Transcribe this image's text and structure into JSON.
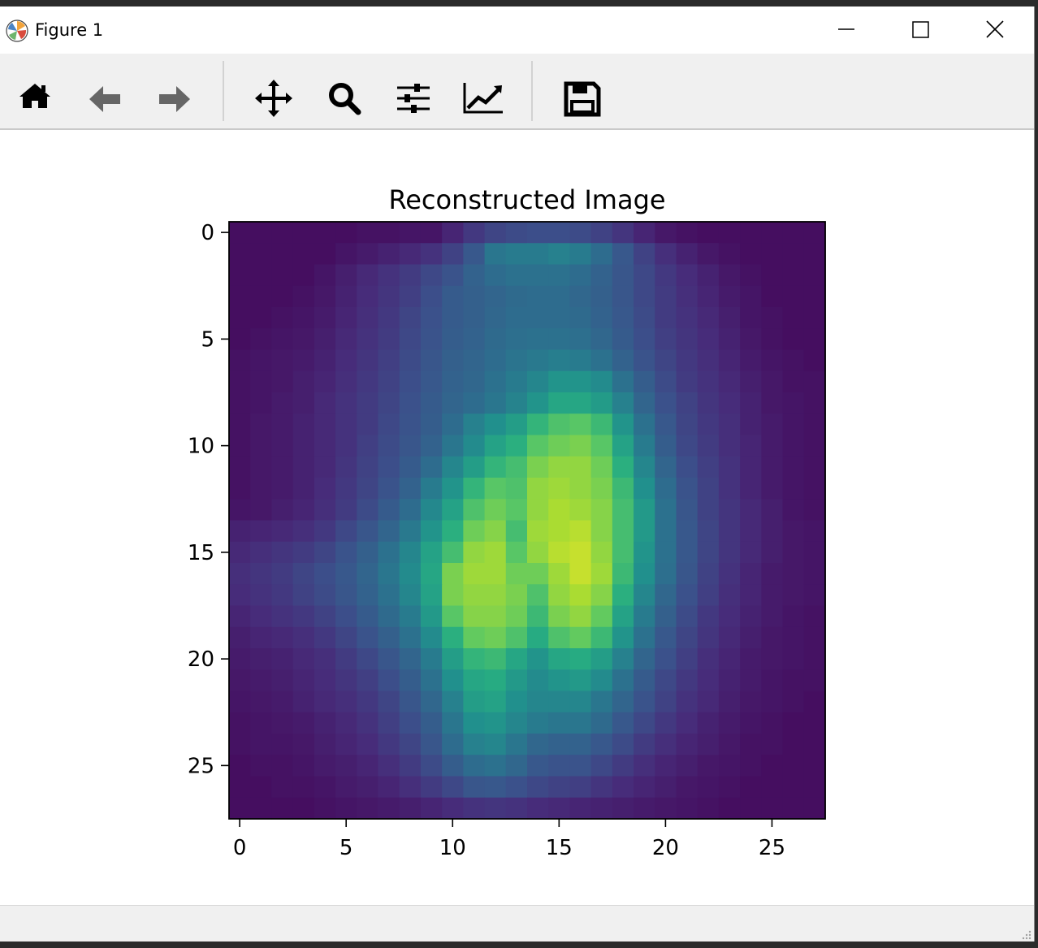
{
  "window": {
    "title": "Figure 1",
    "controls": [
      "minimize",
      "maximize",
      "close"
    ]
  },
  "toolbar": {
    "buttons": [
      {
        "name": "home",
        "icon": "home-icon"
      },
      {
        "name": "back",
        "icon": "arrow-left-icon"
      },
      {
        "name": "forward",
        "icon": "arrow-right-icon"
      },
      {
        "name": "pan",
        "icon": "move-icon"
      },
      {
        "name": "zoom",
        "icon": "magnifier-icon"
      },
      {
        "name": "subplots",
        "icon": "sliders-icon"
      },
      {
        "name": "axes",
        "icon": "line-chart-icon"
      },
      {
        "name": "save",
        "icon": "floppy-disk-icon"
      }
    ]
  },
  "statusbar": {
    "text": ""
  },
  "chart_data": {
    "type": "heatmap",
    "title": "Reconstructed Image",
    "xlabel": "",
    "ylabel": "",
    "colormap": "viridis",
    "rows": 28,
    "cols": 28,
    "xlim": [
      -0.5,
      27.5
    ],
    "ylim": [
      27.5,
      -0.5
    ],
    "xticks": [
      0,
      5,
      10,
      15,
      20,
      25
    ],
    "yticks": [
      0,
      5,
      10,
      15,
      20,
      25
    ],
    "values": [
      [
        0.04,
        0.04,
        0.04,
        0.04,
        0.04,
        0.04,
        0.05,
        0.05,
        0.06,
        0.06,
        0.11,
        0.17,
        0.21,
        0.23,
        0.24,
        0.24,
        0.23,
        0.2,
        0.16,
        0.11,
        0.07,
        0.05,
        0.04,
        0.04,
        0.04,
        0.04,
        0.04,
        0.04
      ],
      [
        0.04,
        0.04,
        0.04,
        0.04,
        0.04,
        0.06,
        0.08,
        0.1,
        0.12,
        0.15,
        0.2,
        0.28,
        0.4,
        0.42,
        0.42,
        0.44,
        0.42,
        0.36,
        0.28,
        0.2,
        0.14,
        0.1,
        0.07,
        0.05,
        0.04,
        0.04,
        0.04,
        0.04
      ],
      [
        0.04,
        0.04,
        0.04,
        0.04,
        0.06,
        0.09,
        0.12,
        0.15,
        0.18,
        0.22,
        0.26,
        0.32,
        0.36,
        0.38,
        0.38,
        0.38,
        0.36,
        0.32,
        0.27,
        0.22,
        0.17,
        0.13,
        0.1,
        0.07,
        0.05,
        0.04,
        0.04,
        0.04
      ],
      [
        0.04,
        0.04,
        0.04,
        0.05,
        0.07,
        0.1,
        0.13,
        0.16,
        0.19,
        0.24,
        0.29,
        0.31,
        0.33,
        0.35,
        0.36,
        0.36,
        0.34,
        0.31,
        0.27,
        0.22,
        0.18,
        0.14,
        0.11,
        0.08,
        0.06,
        0.04,
        0.04,
        0.04
      ],
      [
        0.04,
        0.04,
        0.05,
        0.06,
        0.08,
        0.11,
        0.14,
        0.17,
        0.21,
        0.25,
        0.29,
        0.31,
        0.34,
        0.36,
        0.36,
        0.36,
        0.35,
        0.32,
        0.28,
        0.23,
        0.18,
        0.15,
        0.12,
        0.09,
        0.06,
        0.05,
        0.04,
        0.04
      ],
      [
        0.04,
        0.05,
        0.06,
        0.07,
        0.09,
        0.12,
        0.15,
        0.18,
        0.22,
        0.26,
        0.3,
        0.32,
        0.35,
        0.37,
        0.38,
        0.38,
        0.37,
        0.34,
        0.29,
        0.24,
        0.19,
        0.16,
        0.13,
        0.1,
        0.07,
        0.05,
        0.04,
        0.04
      ],
      [
        0.05,
        0.06,
        0.07,
        0.08,
        0.1,
        0.13,
        0.16,
        0.19,
        0.23,
        0.27,
        0.31,
        0.33,
        0.36,
        0.39,
        0.41,
        0.43,
        0.42,
        0.38,
        0.32,
        0.26,
        0.21,
        0.17,
        0.14,
        0.11,
        0.08,
        0.06,
        0.05,
        0.04
      ],
      [
        0.05,
        0.06,
        0.07,
        0.09,
        0.11,
        0.14,
        0.17,
        0.2,
        0.24,
        0.28,
        0.32,
        0.34,
        0.38,
        0.42,
        0.46,
        0.52,
        0.52,
        0.48,
        0.38,
        0.3,
        0.23,
        0.18,
        0.15,
        0.12,
        0.09,
        0.07,
        0.05,
        0.05
      ],
      [
        0.05,
        0.06,
        0.08,
        0.09,
        0.12,
        0.15,
        0.18,
        0.21,
        0.25,
        0.29,
        0.33,
        0.36,
        0.4,
        0.45,
        0.52,
        0.6,
        0.6,
        0.55,
        0.44,
        0.33,
        0.25,
        0.2,
        0.16,
        0.13,
        0.1,
        0.07,
        0.06,
        0.05
      ],
      [
        0.05,
        0.07,
        0.08,
        0.1,
        0.12,
        0.15,
        0.18,
        0.22,
        0.26,
        0.3,
        0.36,
        0.44,
        0.5,
        0.56,
        0.66,
        0.72,
        0.74,
        0.68,
        0.52,
        0.38,
        0.28,
        0.21,
        0.17,
        0.14,
        0.1,
        0.08,
        0.06,
        0.05
      ],
      [
        0.05,
        0.07,
        0.08,
        0.1,
        0.12,
        0.15,
        0.19,
        0.23,
        0.27,
        0.32,
        0.4,
        0.48,
        0.58,
        0.64,
        0.74,
        0.78,
        0.8,
        0.74,
        0.58,
        0.42,
        0.3,
        0.22,
        0.18,
        0.14,
        0.11,
        0.08,
        0.06,
        0.05
      ],
      [
        0.05,
        0.07,
        0.08,
        0.1,
        0.12,
        0.16,
        0.2,
        0.24,
        0.29,
        0.36,
        0.46,
        0.56,
        0.66,
        0.7,
        0.8,
        0.84,
        0.84,
        0.78,
        0.64,
        0.46,
        0.33,
        0.24,
        0.19,
        0.15,
        0.11,
        0.08,
        0.06,
        0.05
      ],
      [
        0.05,
        0.07,
        0.08,
        0.1,
        0.13,
        0.17,
        0.21,
        0.26,
        0.32,
        0.42,
        0.52,
        0.66,
        0.74,
        0.72,
        0.84,
        0.86,
        0.84,
        0.8,
        0.68,
        0.5,
        0.36,
        0.26,
        0.2,
        0.15,
        0.11,
        0.08,
        0.06,
        0.05
      ],
      [
        0.06,
        0.07,
        0.09,
        0.11,
        0.14,
        0.18,
        0.23,
        0.29,
        0.36,
        0.47,
        0.58,
        0.72,
        0.78,
        0.74,
        0.84,
        0.88,
        0.86,
        0.82,
        0.7,
        0.54,
        0.38,
        0.27,
        0.2,
        0.16,
        0.12,
        0.09,
        0.06,
        0.05
      ],
      [
        0.1,
        0.11,
        0.12,
        0.14,
        0.17,
        0.22,
        0.27,
        0.33,
        0.41,
        0.52,
        0.64,
        0.78,
        0.82,
        0.7,
        0.86,
        0.88,
        0.9,
        0.82,
        0.7,
        0.54,
        0.38,
        0.28,
        0.21,
        0.16,
        0.12,
        0.09,
        0.07,
        0.06
      ],
      [
        0.12,
        0.14,
        0.16,
        0.18,
        0.21,
        0.26,
        0.31,
        0.38,
        0.46,
        0.58,
        0.7,
        0.84,
        0.86,
        0.74,
        0.84,
        0.9,
        0.92,
        0.84,
        0.7,
        0.52,
        0.38,
        0.28,
        0.21,
        0.16,
        0.12,
        0.09,
        0.07,
        0.06
      ],
      [
        0.14,
        0.16,
        0.18,
        0.21,
        0.24,
        0.28,
        0.33,
        0.4,
        0.48,
        0.6,
        0.8,
        0.86,
        0.86,
        0.78,
        0.78,
        0.86,
        0.92,
        0.86,
        0.68,
        0.5,
        0.37,
        0.27,
        0.2,
        0.15,
        0.11,
        0.08,
        0.07,
        0.06
      ],
      [
        0.13,
        0.15,
        0.17,
        0.2,
        0.23,
        0.27,
        0.32,
        0.38,
        0.46,
        0.58,
        0.8,
        0.84,
        0.84,
        0.8,
        0.72,
        0.84,
        0.88,
        0.82,
        0.64,
        0.46,
        0.34,
        0.25,
        0.19,
        0.14,
        0.11,
        0.08,
        0.07,
        0.06
      ],
      [
        0.11,
        0.13,
        0.15,
        0.17,
        0.2,
        0.24,
        0.29,
        0.35,
        0.42,
        0.54,
        0.74,
        0.82,
        0.82,
        0.78,
        0.68,
        0.8,
        0.84,
        0.76,
        0.58,
        0.42,
        0.31,
        0.23,
        0.17,
        0.13,
        0.1,
        0.08,
        0.06,
        0.05
      ],
      [
        0.09,
        0.11,
        0.12,
        0.14,
        0.17,
        0.21,
        0.26,
        0.31,
        0.38,
        0.48,
        0.64,
        0.76,
        0.78,
        0.72,
        0.62,
        0.72,
        0.76,
        0.68,
        0.52,
        0.38,
        0.28,
        0.21,
        0.16,
        0.12,
        0.09,
        0.07,
        0.06,
        0.05
      ],
      [
        0.08,
        0.09,
        0.1,
        0.12,
        0.14,
        0.18,
        0.22,
        0.27,
        0.33,
        0.42,
        0.56,
        0.66,
        0.68,
        0.6,
        0.52,
        0.6,
        0.62,
        0.56,
        0.44,
        0.33,
        0.25,
        0.19,
        0.14,
        0.11,
        0.08,
        0.07,
        0.06,
        0.05
      ],
      [
        0.07,
        0.08,
        0.09,
        0.11,
        0.13,
        0.16,
        0.19,
        0.24,
        0.3,
        0.38,
        0.5,
        0.6,
        0.62,
        0.54,
        0.48,
        0.52,
        0.54,
        0.48,
        0.38,
        0.29,
        0.22,
        0.17,
        0.13,
        0.1,
        0.08,
        0.06,
        0.05,
        0.05
      ],
      [
        0.06,
        0.07,
        0.08,
        0.1,
        0.12,
        0.14,
        0.17,
        0.21,
        0.27,
        0.34,
        0.44,
        0.56,
        0.58,
        0.5,
        0.46,
        0.46,
        0.46,
        0.4,
        0.33,
        0.26,
        0.2,
        0.15,
        0.12,
        0.09,
        0.07,
        0.06,
        0.05,
        0.04
      ],
      [
        0.05,
        0.06,
        0.07,
        0.08,
        0.1,
        0.12,
        0.15,
        0.19,
        0.24,
        0.3,
        0.4,
        0.5,
        0.52,
        0.46,
        0.42,
        0.4,
        0.4,
        0.35,
        0.28,
        0.22,
        0.17,
        0.13,
        0.1,
        0.08,
        0.06,
        0.05,
        0.04,
        0.04
      ],
      [
        0.05,
        0.06,
        0.06,
        0.07,
        0.09,
        0.11,
        0.13,
        0.17,
        0.21,
        0.27,
        0.36,
        0.44,
        0.46,
        0.4,
        0.34,
        0.32,
        0.32,
        0.28,
        0.23,
        0.18,
        0.14,
        0.11,
        0.09,
        0.07,
        0.05,
        0.05,
        0.04,
        0.04
      ],
      [
        0.04,
        0.05,
        0.05,
        0.06,
        0.08,
        0.09,
        0.11,
        0.14,
        0.18,
        0.23,
        0.3,
        0.36,
        0.38,
        0.34,
        0.28,
        0.26,
        0.26,
        0.22,
        0.18,
        0.14,
        0.11,
        0.09,
        0.07,
        0.06,
        0.05,
        0.04,
        0.04,
        0.04
      ],
      [
        0.04,
        0.04,
        0.05,
        0.05,
        0.06,
        0.08,
        0.09,
        0.11,
        0.14,
        0.18,
        0.22,
        0.27,
        0.28,
        0.25,
        0.22,
        0.2,
        0.19,
        0.16,
        0.13,
        0.11,
        0.09,
        0.07,
        0.06,
        0.05,
        0.04,
        0.04,
        0.04,
        0.04
      ],
      [
        0.04,
        0.04,
        0.04,
        0.04,
        0.05,
        0.06,
        0.07,
        0.08,
        0.09,
        0.11,
        0.13,
        0.15,
        0.16,
        0.15,
        0.13,
        0.12,
        0.11,
        0.1,
        0.09,
        0.08,
        0.07,
        0.06,
        0.05,
        0.04,
        0.04,
        0.04,
        0.04,
        0.04
      ]
    ]
  }
}
